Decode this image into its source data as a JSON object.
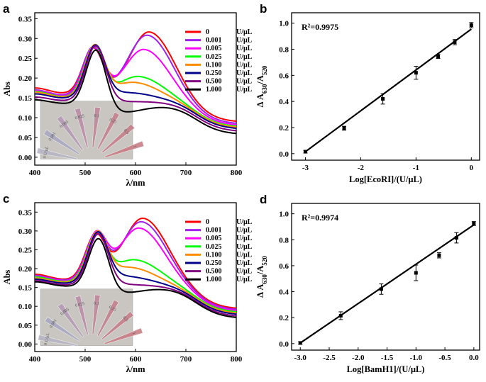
{
  "chart_data": [
    {
      "panel": "a",
      "type": "line",
      "xlabel": "λ/nm",
      "ylabel": "Abs",
      "xlim": [
        400,
        800
      ],
      "ylim": [
        -0.02,
        0.365
      ],
      "xticks": [
        400,
        500,
        600,
        700,
        800
      ],
      "yticks": [
        0.0,
        0.05,
        0.1,
        0.15,
        0.2,
        0.25,
        0.3,
        0.35
      ],
      "legend_unit": "U/μL",
      "photo_labels": [
        "0 U/μL",
        "0.001",
        "0.005",
        "0.025",
        "0.1",
        "0.25",
        "0.5",
        "1"
      ],
      "series": [
        {
          "name": "0",
          "color": "#ff0000",
          "start": 0.205,
          "valley": 0.19,
          "p1x": 515,
          "p1": 0.275,
          "p2x": 628,
          "p2": 0.329,
          "end": 0.04
        },
        {
          "name": "0.001",
          "color": "#a020f0",
          "start": 0.2,
          "valley": 0.185,
          "p1x": 515,
          "p1": 0.276,
          "p2x": 624,
          "p2": 0.32,
          "end": 0.035
        },
        {
          "name": "0.005",
          "color": "#ff00ff",
          "start": 0.198,
          "valley": 0.183,
          "p1x": 517,
          "p1": 0.277,
          "p2x": 617,
          "p2": 0.281,
          "end": 0.03
        },
        {
          "name": "0.025",
          "color": "#00ff00",
          "start": 0.196,
          "valley": 0.181,
          "p1x": 518,
          "p1": 0.278,
          "p2x": 605,
          "p2": 0.246,
          "end": 0.025
        },
        {
          "name": "0.100",
          "color": "#ff8c00",
          "start": 0.194,
          "valley": 0.18,
          "p1x": 519,
          "p1": 0.279,
          "p2x": 595,
          "p2": 0.22,
          "end": 0.022
        },
        {
          "name": "0.250",
          "color": "#00008b",
          "start": 0.19,
          "valley": 0.178,
          "p1x": 520,
          "p1": 0.28,
          "p2x": 585,
          "p2": 0.175,
          "end": 0.018
        },
        {
          "name": "0.500",
          "color": "#800080",
          "start": 0.182,
          "valley": 0.172,
          "p1x": 521,
          "p1": 0.282,
          "p2x": 575,
          "p2": 0.14,
          "end": 0.012
        },
        {
          "name": "1.000",
          "color": "#000000",
          "start": 0.175,
          "valley": 0.165,
          "p1x": 522,
          "p1": 0.283,
          "p2x": 565,
          "p2": 0.095,
          "end": 0.005
        }
      ]
    },
    {
      "panel": "b",
      "type": "scatter",
      "xlabel": "Log[EcoRI]/(U/μL)",
      "ylabel": "Δ A630/A520",
      "xlim": [
        -3.25,
        0.15
      ],
      "ylim": [
        -0.05,
        1.08
      ],
      "xticks": [
        -3,
        -2,
        -1,
        0
      ],
      "xtick_labels": [
        "-3",
        "-2",
        "-1",
        "0"
      ],
      "yticks": [
        0.0,
        0.2,
        0.4,
        0.6,
        0.8,
        1.0
      ],
      "r2": "R²=0.9975",
      "x": [
        -3,
        -2.3,
        -1.6,
        -1,
        -0.6,
        -0.3,
        0
      ],
      "y": [
        0.015,
        0.195,
        0.42,
        0.62,
        0.745,
        0.855,
        0.985
      ],
      "err": [
        0.01,
        0.015,
        0.04,
        0.05,
        0.015,
        0.02,
        0.02
      ],
      "fit": [
        [
          -3,
          0.015
        ],
        [
          0,
          0.955
        ]
      ]
    },
    {
      "panel": "c",
      "type": "line",
      "xlabel": "λ/nm",
      "ylabel": "Abs",
      "xlim": [
        400,
        800
      ],
      "ylim": [
        -0.02,
        0.375
      ],
      "xticks": [
        400,
        500,
        600,
        700,
        800
      ],
      "yticks": [
        0.0,
        0.05,
        0.1,
        0.15,
        0.2,
        0.25,
        0.3,
        0.35
      ],
      "legend_unit": "U/μL",
      "photo_labels": [
        "0 U/μL",
        "0.001",
        "0.005",
        "0.025",
        "0.1",
        "0.25",
        "0.5",
        "1"
      ],
      "series": [
        {
          "name": "0",
          "color": "#ff0000",
          "start": 0.215,
          "valley": 0.2,
          "p1x": 520,
          "p1": 0.285,
          "p2x": 615,
          "p2": 0.345,
          "end": 0.04
        },
        {
          "name": "0.001",
          "color": "#a020f0",
          "start": 0.212,
          "valley": 0.198,
          "p1x": 521,
          "p1": 0.286,
          "p2x": 612,
          "p2": 0.335,
          "end": 0.036
        },
        {
          "name": "0.005",
          "color": "#ff00ff",
          "start": 0.21,
          "valley": 0.196,
          "p1x": 522,
          "p1": 0.287,
          "p2x": 607,
          "p2": 0.317,
          "end": 0.032
        },
        {
          "name": "0.025",
          "color": "#00ff00",
          "start": 0.208,
          "valley": 0.194,
          "p1x": 523,
          "p1": 0.288,
          "p2x": 597,
          "p2": 0.27,
          "end": 0.028
        },
        {
          "name": "0.100",
          "color": "#ff8c00",
          "start": 0.205,
          "valley": 0.192,
          "p1x": 524,
          "p1": 0.289,
          "p2x": 588,
          "p2": 0.235,
          "end": 0.024
        },
        {
          "name": "0.250",
          "color": "#00008b",
          "start": 0.202,
          "valley": 0.19,
          "p1x": 525,
          "p1": 0.29,
          "p2x": 578,
          "p2": 0.195,
          "end": 0.02
        },
        {
          "name": "0.500",
          "color": "#800080",
          "start": 0.198,
          "valley": 0.186,
          "p1x": 526,
          "p1": 0.291,
          "p2x": 570,
          "p2": 0.16,
          "end": 0.015
        },
        {
          "name": "1.000",
          "color": "#000000",
          "start": 0.195,
          "valley": 0.183,
          "p1x": 527,
          "p1": 0.292,
          "p2x": 562,
          "p2": 0.12,
          "end": 0.01
        }
      ]
    },
    {
      "panel": "d",
      "type": "scatter",
      "xlabel": "Log[BamH1]/(U/μL)",
      "ylabel": "Δ A630/A520",
      "xlim": [
        -3.15,
        0.1
      ],
      "ylim": [
        -0.05,
        1.08
      ],
      "xticks": [
        -3,
        -2.5,
        -2,
        -1.5,
        -1,
        -0.5,
        0
      ],
      "xtick_labels": [
        "-3.0",
        "-2.5",
        "-2.0",
        "-1.5",
        "-1.0",
        "-0.5",
        "0.0"
      ],
      "yticks": [
        0.0,
        0.2,
        0.4,
        0.6,
        0.8,
        1.0
      ],
      "r2": "R²=0.9974",
      "x": [
        -3,
        -2.3,
        -1.6,
        -1,
        -0.6,
        -0.3,
        0
      ],
      "y": [
        0.005,
        0.215,
        0.42,
        0.545,
        0.68,
        0.815,
        0.925
      ],
      "err": [
        0.01,
        0.03,
        0.04,
        0.06,
        0.02,
        0.04,
        0.015
      ],
      "fit": [
        [
          -3,
          0.005
        ],
        [
          0,
          0.915
        ]
      ]
    }
  ]
}
